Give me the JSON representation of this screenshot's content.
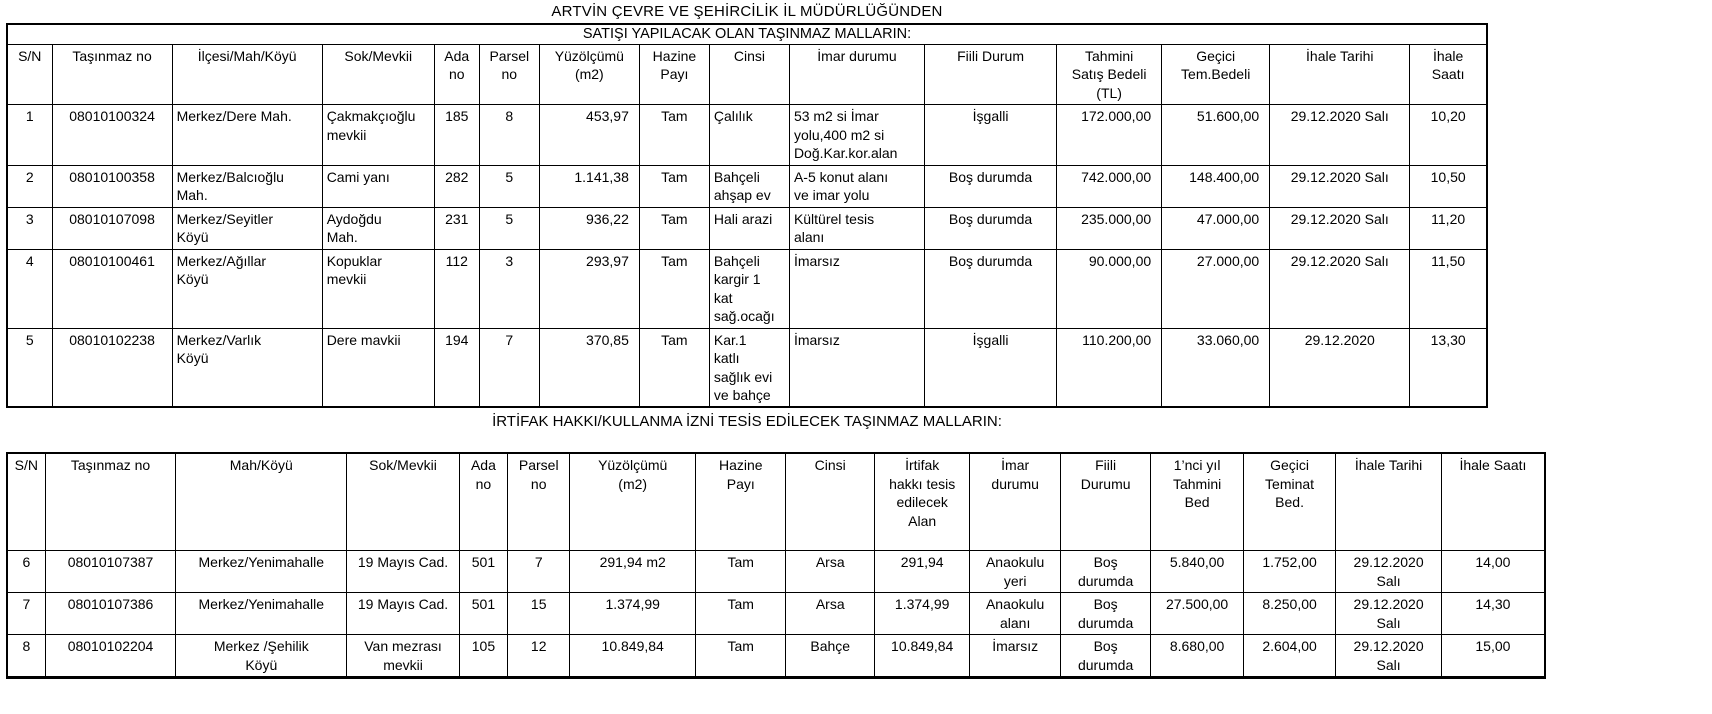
{
  "page": {
    "title": "ARTVİN ÇEVRE VE ŞEHİRCİLİK İL MÜDÜRLÜĞÜNDEN"
  },
  "sale_table": {
    "section_title": "SATIŞI YAPILACAK OLAN TAŞINMAZ MALLARIN:",
    "headers": [
      "S/N",
      "Taşınmaz no",
      "İlçesi/Mah/Köyü",
      "Sok/Mevkii",
      "Ada\nno",
      "Parsel\nno",
      "Yüzölçümü\n(m2)",
      "Hazine\nPayı",
      "Cinsi",
      "İmar durumu",
      "Fiili Durum",
      "Tahmini\nSatış Bedeli\n(TL)",
      "Geçici\nTem.Bedeli",
      "İhale Tarihi",
      "İhale\nSaatı"
    ],
    "rows": [
      [
        "1",
        "08010100324",
        "Merkez/Dere Mah.",
        "Çakmakçıoğlu\nmevkii",
        "185",
        "8",
        "453,97",
        "Tam",
        "Çalılık",
        "53 m2 si İmar\nyolu,400 m2 si\nDoğ.Kar.kor.alan",
        "İşgalli",
        "172.000,00",
        "51.600,00",
        "29.12.2020 Salı",
        "10,20"
      ],
      [
        "2",
        "08010100358",
        "Merkez/Balcıoğlu\nMah.",
        "Cami yanı",
        "282",
        "5",
        "1.141,38",
        "Tam",
        "Bahçeli\nahşap ev",
        "A-5 konut alanı\nve imar yolu",
        "Boş durumda",
        "742.000,00",
        "148.400,00",
        "29.12.2020 Salı",
        "10,50"
      ],
      [
        "3",
        "08010107098",
        "Merkez/Seyitler\nKöyü",
        "Aydoğdu\nMah.",
        "231",
        "5",
        "936,22",
        "Tam",
        "Hali arazi",
        "Kültürel tesis\nalanı",
        "Boş durumda",
        "235.000,00",
        "47.000,00",
        "29.12.2020 Salı",
        "11,20"
      ],
      [
        "4",
        "08010100461",
        "Merkez/Ağıllar\nKöyü",
        "Kopuklar\nmevkii",
        "112",
        "3",
        "293,97",
        "Tam",
        "Bahçeli\nkargir 1\nkat\nsağ.ocağı",
        "İmarsız",
        "Boş durumda",
        "90.000,00",
        "27.000,00",
        "29.12.2020 Salı",
        "11,50"
      ],
      [
        "5",
        "08010102238",
        "Merkez/Varlık\nKöyü",
        "Dere mavkii",
        "194",
        "7",
        "370,85",
        "Tam",
        "Kar.1\nkatlı\nsağlık evi\nve bahçe",
        "İmarsız",
        "İşgalli",
        "110.200,00",
        "33.060,00",
        "29.12.2020",
        "13,30"
      ]
    ]
  },
  "easement_table": {
    "section_title": "İRTİFAK HAKKI/KULLANMA İZNİ TESİS EDİLECEK TAŞINMAZ MALLARIN:",
    "headers": [
      "S/N",
      "Taşınmaz no",
      "Mah/Köyü",
      "Sok/Mevkii",
      "Ada\nno",
      "Parsel\nno",
      "Yüzölçümü\n(m2)",
      "Hazine\nPayı",
      "Cinsi",
      "İrtifak\nhakkı tesis\nedilecek\nAlan",
      "İmar\ndurumu",
      "Fiili\nDurumu",
      "1’nci yıl\nTahmini\nBed",
      "Geçici\nTeminat\nBed.",
      "İhale Tarihi",
      "İhale Saatı"
    ],
    "rows": [
      [
        "6",
        "08010107387",
        "Merkez/Yenimahalle",
        "19 Mayıs Cad.",
        "501",
        "7",
        "291,94 m2",
        "Tam",
        "Arsa",
        "291,94",
        "Anaokulu\nyeri",
        "Boş\ndurumda",
        "5.840,00",
        "1.752,00",
        "29.12.2020\nSalı",
        "14,00"
      ],
      [
        "7",
        "08010107386",
        "Merkez/Yenimahalle",
        "19 Mayıs Cad.",
        "501",
        "15",
        "1.374,99",
        "Tam",
        "Arsa",
        "1.374,99",
        "Anaokulu\nalanı",
        "Boş\ndurumda",
        "27.500,00",
        "8.250,00",
        "29.12.2020\nSalı",
        "14,30"
      ],
      [
        "8",
        "08010102204",
        "Merkez /Şehilik\nKöyü",
        "Van mezrası\nmevkii",
        "105",
        "12",
        "10.849,84",
        "Tam",
        "Bahçe",
        "10.849,84",
        "İmarsız",
        "Boş\ndurumda",
        "8.680,00",
        "2.604,00",
        "29.12.2020\nSalı",
        "15,00"
      ]
    ]
  }
}
